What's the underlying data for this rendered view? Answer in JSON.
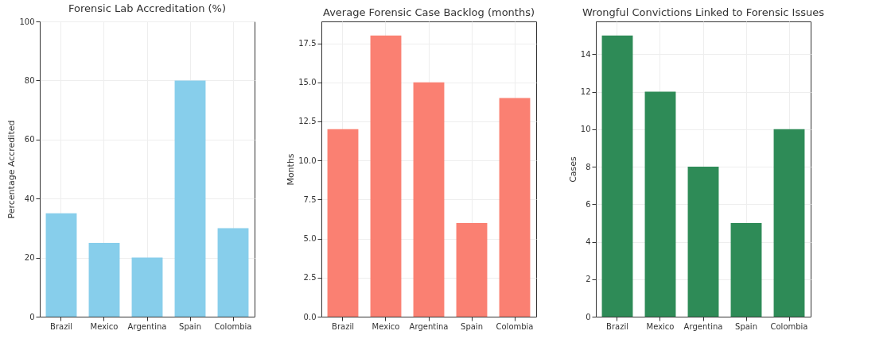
{
  "chart_data": [
    {
      "type": "bar",
      "title": "Forensic Lab Accreditation (%)",
      "ylabel": "Percentage Accredited",
      "categories": [
        "Brazil",
        "Mexico",
        "Argentina",
        "Spain",
        "Colombia"
      ],
      "values": [
        35,
        25,
        20,
        80,
        30
      ],
      "color": "#87ceeb",
      "ylim": [
        0,
        100
      ],
      "yticks": [
        0,
        20,
        40,
        60,
        80,
        100
      ],
      "grid": true
    },
    {
      "type": "bar",
      "title": "Average Forensic Case Backlog (months)",
      "ylabel": "Months",
      "categories": [
        "Brazil",
        "Mexico",
        "Argentina",
        "Spain",
        "Colombia"
      ],
      "values": [
        12,
        18,
        15,
        6,
        14
      ],
      "color": "#fa8072",
      "ylim": [
        0,
        18.9
      ],
      "yticks": [
        {
          "value": 0,
          "label": "0.0"
        },
        2.5,
        {
          "value": 5,
          "label": "5.0"
        },
        7.5,
        {
          "value": 10,
          "label": "10.0"
        },
        12.5,
        {
          "value": 15,
          "label": "15.0"
        },
        17.5
      ],
      "grid": true
    },
    {
      "type": "bar",
      "title": "Wrongful Convictions Linked to Forensic Issues",
      "ylabel": "Cases",
      "categories": [
        "Brazil",
        "Mexico",
        "Argentina",
        "Spain",
        "Colombia"
      ],
      "values": [
        15,
        12,
        8,
        5,
        10
      ],
      "color": "#2e8b57",
      "ylim": [
        0,
        15.75
      ],
      "yticks": [
        0,
        2,
        4,
        6,
        8,
        10,
        12,
        14
      ],
      "grid": true
    }
  ]
}
